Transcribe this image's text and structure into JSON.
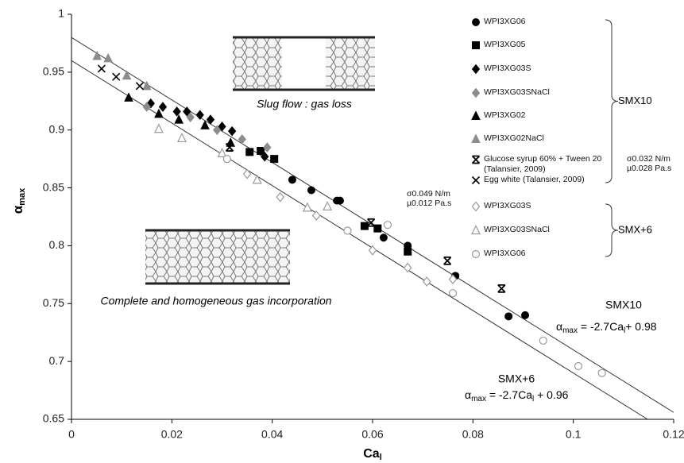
{
  "chart_data": {
    "type": "scatter",
    "x_label": {
      "text": "Ca",
      "sub": "l"
    },
    "y_label": {
      "text": "α",
      "sub": "max"
    },
    "xlim": [
      0,
      0.12
    ],
    "xticks": [
      0,
      0.02,
      0.04,
      0.06,
      0.08,
      0.1,
      0.12
    ],
    "ylim": [
      0.65,
      1
    ],
    "yticks": [
      0.65,
      0.7,
      0.75,
      0.8,
      0.85,
      0.9,
      0.95,
      1
    ],
    "grid": false,
    "series": [
      {
        "name": "WPI3XG06",
        "marker": "circle",
        "color": "#000000",
        "filled": true,
        "x": [
          0.044,
          0.0478,
          0.0529,
          0.0535,
          0.0622,
          0.067,
          0.0765,
          0.0871,
          0.0904
        ],
        "values": [
          0.857,
          0.848,
          0.839,
          0.839,
          0.807,
          0.8,
          0.774,
          0.739,
          0.74
        ]
      },
      {
        "name": "WPI3XG05",
        "marker": "square",
        "color": "#000000",
        "filled": true,
        "x": [
          0.0355,
          0.0377,
          0.0404,
          0.0584,
          0.061,
          0.067
        ],
        "values": [
          0.881,
          0.882,
          0.875,
          0.817,
          0.815,
          0.795
        ]
      },
      {
        "name": "WPI3XG03S",
        "marker": "diamond",
        "color": "#000000",
        "filled": true,
        "x": [
          0.0158,
          0.0182,
          0.021,
          0.023,
          0.0256,
          0.0277,
          0.03,
          0.032,
          0.0385
        ],
        "values": [
          0.923,
          0.92,
          0.916,
          0.916,
          0.913,
          0.909,
          0.903,
          0.899,
          0.877
        ]
      },
      {
        "name": "WPI3XG03SNaCl",
        "marker": "diamond",
        "color": "#8c8c8c",
        "filled": true,
        "x": [
          0.015,
          0.0237,
          0.029,
          0.034,
          0.039
        ],
        "values": [
          0.92,
          0.911,
          0.9,
          0.892,
          0.885
        ]
      },
      {
        "name": "WPI3XG02",
        "marker": "triangle",
        "color": "#000000",
        "filled": true,
        "x": [
          0.0114,
          0.0174,
          0.0214,
          0.0266,
          0.0317
        ],
        "values": [
          0.928,
          0.914,
          0.909,
          0.904,
          0.889
        ]
      },
      {
        "name": "WPI3XG02NaCl",
        "marker": "triangle",
        "color": "#8c8c8c",
        "filled": true,
        "x": [
          0.0051,
          0.0073,
          0.011,
          0.015
        ],
        "values": [
          0.964,
          0.962,
          0.947,
          0.938
        ]
      },
      {
        "name": "Glucose syrup 60% + Tween 20\n(Talansier, 2009)",
        "marker": "asterisk",
        "color": "#000000",
        "filled": true,
        "x": [
          0.0315,
          0.0597,
          0.0749,
          0.0857
        ],
        "values": [
          0.885,
          0.82,
          0.787,
          0.763
        ]
      },
      {
        "name": "Egg white (Talansier, 2009)",
        "marker": "x",
        "color": "#000000",
        "filled": true,
        "x": [
          0.006,
          0.0089,
          0.0136
        ],
        "values": [
          0.953,
          0.946,
          0.938
        ]
      },
      {
        "name": "WPI3XG03S",
        "marker": "diamond",
        "color": "#999999",
        "filled": false,
        "x": [
          0.035,
          0.0416,
          0.0488,
          0.06,
          0.067,
          0.0708,
          0.076
        ],
        "values": [
          0.862,
          0.842,
          0.826,
          0.796,
          0.781,
          0.769,
          0.771
        ]
      },
      {
        "name": "WPI3XG03SNaCl",
        "marker": "triangle",
        "color": "#999999",
        "filled": false,
        "x": [
          0.0174,
          0.022,
          0.03,
          0.037,
          0.047,
          0.051
        ],
        "values": [
          0.901,
          0.893,
          0.88,
          0.857,
          0.833,
          0.834
        ]
      },
      {
        "name": "WPI3XG06",
        "marker": "circle",
        "color": "#999999",
        "filled": false,
        "x": [
          0.031,
          0.055,
          0.063,
          0.076,
          0.094,
          0.101,
          0.1057
        ],
        "values": [
          0.875,
          0.813,
          0.818,
          0.759,
          0.718,
          0.696,
          0.69
        ]
      }
    ],
    "groups": [
      {
        "label": "SMX10",
        "from": 0,
        "to": 7
      },
      {
        "label": "SMX+6",
        "from": 8,
        "to": 10
      }
    ],
    "fit_lines": [
      {
        "name": "SMX10",
        "slope": -2.7,
        "intercept": 0.98,
        "equation": [
          "α",
          "max",
          " = -2.7Ca",
          "l",
          "+ 0.98"
        ]
      },
      {
        "name": "SMX+6",
        "slope": -2.7,
        "intercept": 0.96,
        "equation": [
          "α",
          "max",
          " = -2.7Ca",
          "l",
          " + 0.96"
        ]
      }
    ],
    "notes": [
      [
        "σ0.049 N/m",
        "µ0.012 Pa.s"
      ],
      [
        "σ0.032 N/m",
        "µ0.028 Pa.s"
      ]
    ],
    "captions": [
      "Slug flow : gas loss",
      "Complete and homogeneous gas incorporation"
    ]
  }
}
